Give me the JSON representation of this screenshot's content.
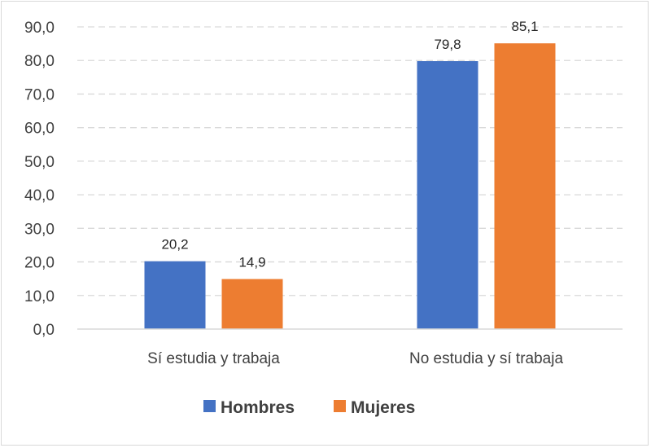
{
  "chart_data": {
    "type": "bar",
    "categories": [
      "Sí estudia y trabaja",
      "No estudia y sí trabaja"
    ],
    "series": [
      {
        "name": "Hombres",
        "values": [
          20.2,
          79.8
        ],
        "labels": [
          "20,2",
          "79,8"
        ],
        "color": "#4472c4"
      },
      {
        "name": "Mujeres",
        "values": [
          14.9,
          85.1
        ],
        "labels": [
          "14,9",
          "85,1"
        ],
        "color": "#ed7d31"
      }
    ],
    "ylim": [
      0,
      90
    ],
    "yticks": [
      "0,0",
      "10,0",
      "20,0",
      "30,0",
      "40,0",
      "50,0",
      "60,0",
      "70,0",
      "80,0",
      "90,0"
    ],
    "grid": true,
    "legend_position": "bottom",
    "title": "",
    "xlabel": "",
    "ylabel": ""
  }
}
